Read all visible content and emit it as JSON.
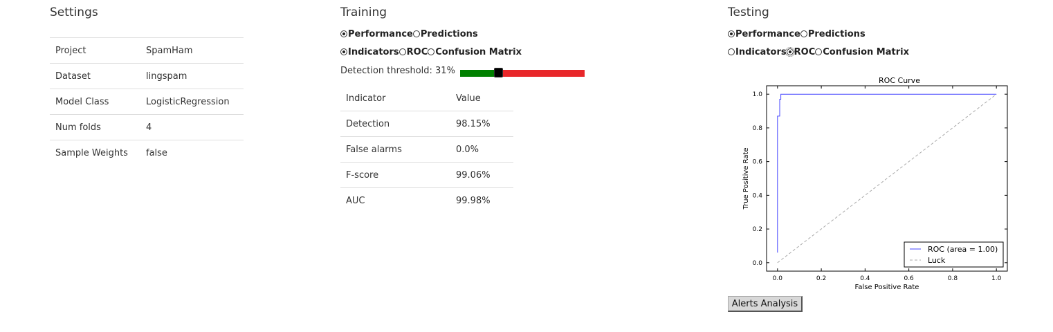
{
  "settings": {
    "title": "Settings",
    "rows": [
      {
        "key": "Project",
        "value": "SpamHam"
      },
      {
        "key": "Dataset",
        "value": "lingspam"
      },
      {
        "key": "Model Class",
        "value": "LogisticRegression"
      },
      {
        "key": "Num folds",
        "value": "4"
      },
      {
        "key": "Sample Weights",
        "value": "false"
      }
    ]
  },
  "training": {
    "title": "Training",
    "view_options": [
      {
        "label": "Performance",
        "checked": true
      },
      {
        "label": "Predictions",
        "checked": false
      }
    ],
    "metric_options": [
      {
        "label": "Indicators",
        "checked": true
      },
      {
        "label": "ROC",
        "checked": false
      },
      {
        "label": "Confusion Matrix",
        "checked": false
      }
    ],
    "threshold_label": "Detection threshold: 31%",
    "threshold_value": 0.31,
    "slider_colors": {
      "below": "#008000",
      "above": "#e8272a",
      "handle": "#000000"
    },
    "indicators_header": {
      "key": "Indicator",
      "value": "Value"
    },
    "indicators": [
      {
        "key": "Detection",
        "value": "98.15%"
      },
      {
        "key": "False alarms",
        "value": "0.0%"
      },
      {
        "key": "F-score",
        "value": "99.06%"
      },
      {
        "key": "AUC",
        "value": "99.98%"
      }
    ]
  },
  "testing": {
    "title": "Testing",
    "view_options": [
      {
        "label": "Performance",
        "checked": true
      },
      {
        "label": "Predictions",
        "checked": false
      }
    ],
    "metric_options": [
      {
        "label": "Indicators",
        "checked": false
      },
      {
        "label": "ROC",
        "checked": true
      },
      {
        "label": "Confusion Matrix",
        "checked": false
      }
    ],
    "alerts_button": "Alerts Analysis"
  },
  "chart_data": {
    "type": "line",
    "title": "ROC Curve",
    "xlabel": "False Positive Rate",
    "ylabel": "True Positive Rate",
    "xlim": [
      -0.05,
      1.05
    ],
    "ylim": [
      -0.05,
      1.05
    ],
    "xticks": [
      "0.0",
      "0.2",
      "0.4",
      "0.6",
      "0.8",
      "1.0"
    ],
    "yticks": [
      "0.0",
      "0.2",
      "0.4",
      "0.6",
      "0.8",
      "1.0"
    ],
    "grid": false,
    "legend_position": "lower-right",
    "series": [
      {
        "name": "ROC (area = 1.00)",
        "color": "#4444ff",
        "style": "solid",
        "x": [
          0.0,
          0.0,
          0.01,
          0.01,
          0.015,
          0.015,
          1.0
        ],
        "y": [
          0.06,
          0.87,
          0.87,
          0.97,
          0.97,
          1.0,
          1.0
        ]
      },
      {
        "name": "Luck",
        "color": "#aaaaaa",
        "style": "dashed",
        "x": [
          0.0,
          1.0
        ],
        "y": [
          0.0,
          1.0
        ]
      }
    ]
  }
}
